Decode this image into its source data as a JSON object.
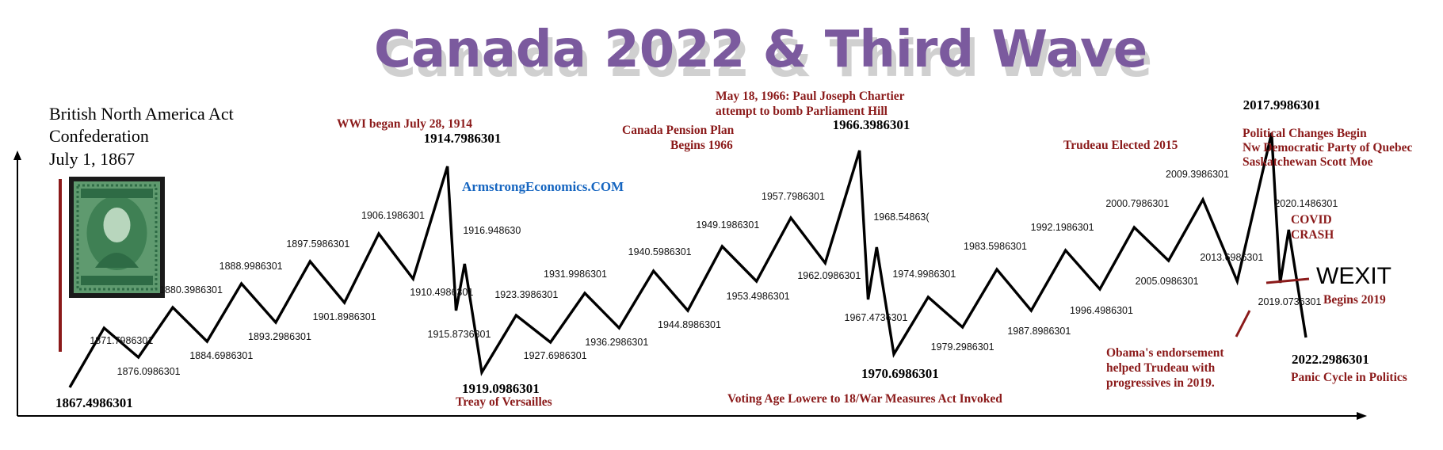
{
  "title": "Canada 2022 & Third Wave",
  "watermark": "ArmstrongEconomics.COM",
  "header_note": {
    "line1": "British North America Act",
    "line2": "Confederation",
    "line3": "July 1, 1867"
  },
  "colors": {
    "title": "#7b5a9e",
    "annotation": "#8b1a1a",
    "watermark": "#1565c0",
    "line": "#000000",
    "stamp": "#2e6b45"
  },
  "stamp_icon": "queen-victoria-stamp-icon",
  "chart_data": {
    "type": "line",
    "title": "Canada 2022 & Third Wave",
    "xlabel": "",
    "ylabel": "",
    "grid": false,
    "legend": "none",
    "points": [
      {
        "label": "1867.4986301",
        "x": 1867.4986301,
        "kind": "low",
        "big": true
      },
      {
        "label": "1871.7986301",
        "x": 1871.7986301,
        "kind": "high"
      },
      {
        "label": "1876.0986301",
        "x": 1876.0986301,
        "kind": "low"
      },
      {
        "label": "1880.3986301",
        "x": 1880.3986301,
        "kind": "high"
      },
      {
        "label": "1884.6986301",
        "x": 1884.6986301,
        "kind": "low"
      },
      {
        "label": "1888.9986301",
        "x": 1888.9986301,
        "kind": "high"
      },
      {
        "label": "1893.2986301",
        "x": 1893.2986301,
        "kind": "low"
      },
      {
        "label": "1897.5986301",
        "x": 1897.5986301,
        "kind": "high"
      },
      {
        "label": "1901.8986301",
        "x": 1901.8986301,
        "kind": "low"
      },
      {
        "label": "1906.1986301",
        "x": 1906.1986301,
        "kind": "high"
      },
      {
        "label": "1910.4986301",
        "x": 1910.4986301,
        "kind": "low"
      },
      {
        "label": "1914.7986301",
        "x": 1914.7986301,
        "kind": "high",
        "big": true
      },
      {
        "label": "1915.8736301",
        "x": 1915.8736301,
        "kind": "low"
      },
      {
        "label": "1916.948630",
        "x": 1916.94863,
        "kind": "high"
      },
      {
        "label": "1919.0986301",
        "x": 1919.0986301,
        "kind": "low",
        "big": true
      },
      {
        "label": "1923.3986301",
        "x": 1923.3986301,
        "kind": "high"
      },
      {
        "label": "1927.6986301",
        "x": 1927.6986301,
        "kind": "low"
      },
      {
        "label": "1931.9986301",
        "x": 1931.9986301,
        "kind": "high"
      },
      {
        "label": "1936.2986301",
        "x": 1936.2986301,
        "kind": "low"
      },
      {
        "label": "1940.5986301",
        "x": 1940.5986301,
        "kind": "high"
      },
      {
        "label": "1944.8986301",
        "x": 1944.8986301,
        "kind": "low"
      },
      {
        "label": "1949.1986301",
        "x": 1949.1986301,
        "kind": "high"
      },
      {
        "label": "1953.4986301",
        "x": 1953.4986301,
        "kind": "low"
      },
      {
        "label": "1957.7986301",
        "x": 1957.7986301,
        "kind": "high"
      },
      {
        "label": "1962.0986301",
        "x": 1962.0986301,
        "kind": "low"
      },
      {
        "label": "1966.3986301",
        "x": 1966.3986301,
        "kind": "high",
        "big": true
      },
      {
        "label": "1967.4736301",
        "x": 1967.4736301,
        "kind": "low"
      },
      {
        "label": "1968.54863(",
        "x": 1968.54863,
        "kind": "high"
      },
      {
        "label": "1970.6986301",
        "x": 1970.6986301,
        "kind": "low",
        "big": true
      },
      {
        "label": "1974.9986301",
        "x": 1974.9986301,
        "kind": "high"
      },
      {
        "label": "1979.2986301",
        "x": 1979.2986301,
        "kind": "low"
      },
      {
        "label": "1983.5986301",
        "x": 1983.5986301,
        "kind": "high"
      },
      {
        "label": "1987.8986301",
        "x": 1987.8986301,
        "kind": "low"
      },
      {
        "label": "1992.1986301",
        "x": 1992.1986301,
        "kind": "high"
      },
      {
        "label": "1996.4986301",
        "x": 1996.4986301,
        "kind": "low"
      },
      {
        "label": "2000.7986301",
        "x": 2000.7986301,
        "kind": "high"
      },
      {
        "label": "2005.0986301",
        "x": 2005.0986301,
        "kind": "low"
      },
      {
        "label": "2009.3986301",
        "x": 2009.3986301,
        "kind": "high"
      },
      {
        "label": "2013.6986301",
        "x": 2013.6986301,
        "kind": "low"
      },
      {
        "label": "2017.9986301",
        "x": 2017.9986301,
        "kind": "high",
        "big": true
      },
      {
        "label": "2019.0736301",
        "x": 2019.0736301,
        "kind": "low"
      },
      {
        "label": "2020.1486301",
        "x": 2020.1486301,
        "kind": "high"
      },
      {
        "label": "2022.2986301",
        "x": 2022.2986301,
        "kind": "low",
        "big": true
      }
    ],
    "annotations": [
      {
        "id": "wwi",
        "lines": [
          "WWI began July 28, 1914"
        ]
      },
      {
        "id": "versailles",
        "lines": [
          "Treay of Versailles"
        ]
      },
      {
        "id": "pension",
        "lines": [
          "Canada Pension Plan",
          "Begins 1966"
        ]
      },
      {
        "id": "chartier",
        "lines": [
          "May 18, 1966: Paul Joseph Chartier",
          "attempt to bomb Parliament Hill"
        ]
      },
      {
        "id": "voting",
        "lines": [
          "Voting Age Lowere to 18/War Measures Act Invoked"
        ]
      },
      {
        "id": "trudeau",
        "lines": [
          "Trudeau Elected 2015"
        ]
      },
      {
        "id": "political",
        "lines": [
          "Political Changes Begin",
          "Nw Democratic Party of Quebec",
          "Saskatchewan Scott Moe"
        ]
      },
      {
        "id": "covid",
        "lines": [
          "COVID",
          "CRASH"
        ]
      },
      {
        "id": "wexit_begins",
        "lines": [
          "Begins 2019"
        ]
      },
      {
        "id": "obama",
        "lines": [
          "Obama's endorsement",
          "helped Trudeau with",
          "progressives in 2019."
        ]
      },
      {
        "id": "panic",
        "lines": [
          "Panic Cycle in Politics"
        ]
      }
    ],
    "wexit_label": "WEXIT"
  }
}
